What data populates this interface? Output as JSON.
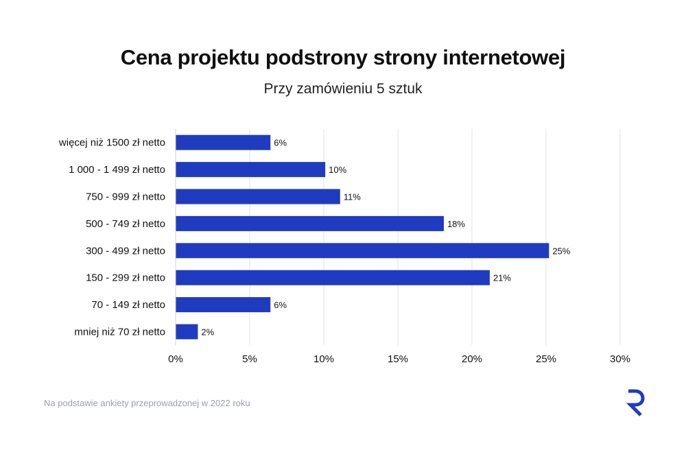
{
  "header": {
    "title": "Cena projektu podstrony strony internetowej",
    "subtitle": "Przy zamówieniu 5 sztuk"
  },
  "footer": {
    "note": "Na podstawie ankiety przeprowadzonej w 2022 roku",
    "logo_icon": "r-logo-icon"
  },
  "colors": {
    "bar": "#1f3bbf",
    "grid": "#e2e2e2",
    "logo": "#1f3bbf"
  },
  "chart_data": {
    "type": "bar",
    "orientation": "horizontal",
    "title": "Cena projektu podstrony strony internetowej",
    "subtitle": "Przy zamówieniu 5 sztuk",
    "categories": [
      "więcej niż 1500 zł netto",
      "1 000 - 1 499 zł netto",
      "750 - 999 zł netto",
      "500 - 749 zł netto",
      "300 - 499 zł netto",
      "150 - 299 zł netto",
      "70 - 149 zł netto",
      "mniej niż 70 zł netto"
    ],
    "values": [
      6.4,
      10.1,
      11.1,
      18.1,
      25.2,
      21.2,
      6.4,
      1.5
    ],
    "data_labels": [
      "6%",
      "10%",
      "11%",
      "18%",
      "25%",
      "21%",
      "6%",
      "2%"
    ],
    "xlim": [
      0,
      30
    ],
    "x_ticks": [
      0,
      5,
      10,
      15,
      20,
      25,
      30
    ],
    "x_tick_labels": [
      "0%",
      "5%",
      "10%",
      "15%",
      "20%",
      "25%",
      "30%"
    ],
    "grid": true,
    "legend": "none"
  }
}
